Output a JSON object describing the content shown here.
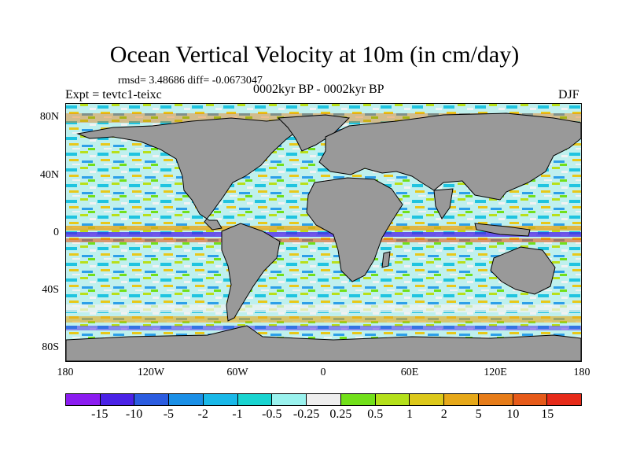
{
  "title": "Ocean Vertical Velocity at 10m (in cm/day)",
  "stats": "rmsd= 3.48686 diff= -0.0673047",
  "experiment": "Expt = tevtc1-teixc",
  "period": "0002kyr BP - 0002kyr BP",
  "season": "DJF",
  "map": {
    "land_color": "#999999",
    "lat_ticks": [
      "80N",
      "40N",
      "0",
      "40S",
      "80S"
    ],
    "lon_ticks": [
      "180",
      "120W",
      "60W",
      "0",
      "60E",
      "120E",
      "180"
    ]
  },
  "colorbar": {
    "colors": [
      "#8b1cf0",
      "#4a22e6",
      "#2b5ce0",
      "#1a8fe6",
      "#19b8e8",
      "#19d4d0",
      "#9af2ee",
      "#eeeeee",
      "#72e01a",
      "#b4e01a",
      "#dcc81a",
      "#e6a819",
      "#e67c19",
      "#e65a19",
      "#e62a19"
    ],
    "labels": [
      "-15",
      "-10",
      "-5",
      "-2",
      "-1",
      "-0.5",
      "-0.25",
      "0.25",
      "0.5",
      "1",
      "2",
      "5",
      "10",
      "15"
    ]
  }
}
